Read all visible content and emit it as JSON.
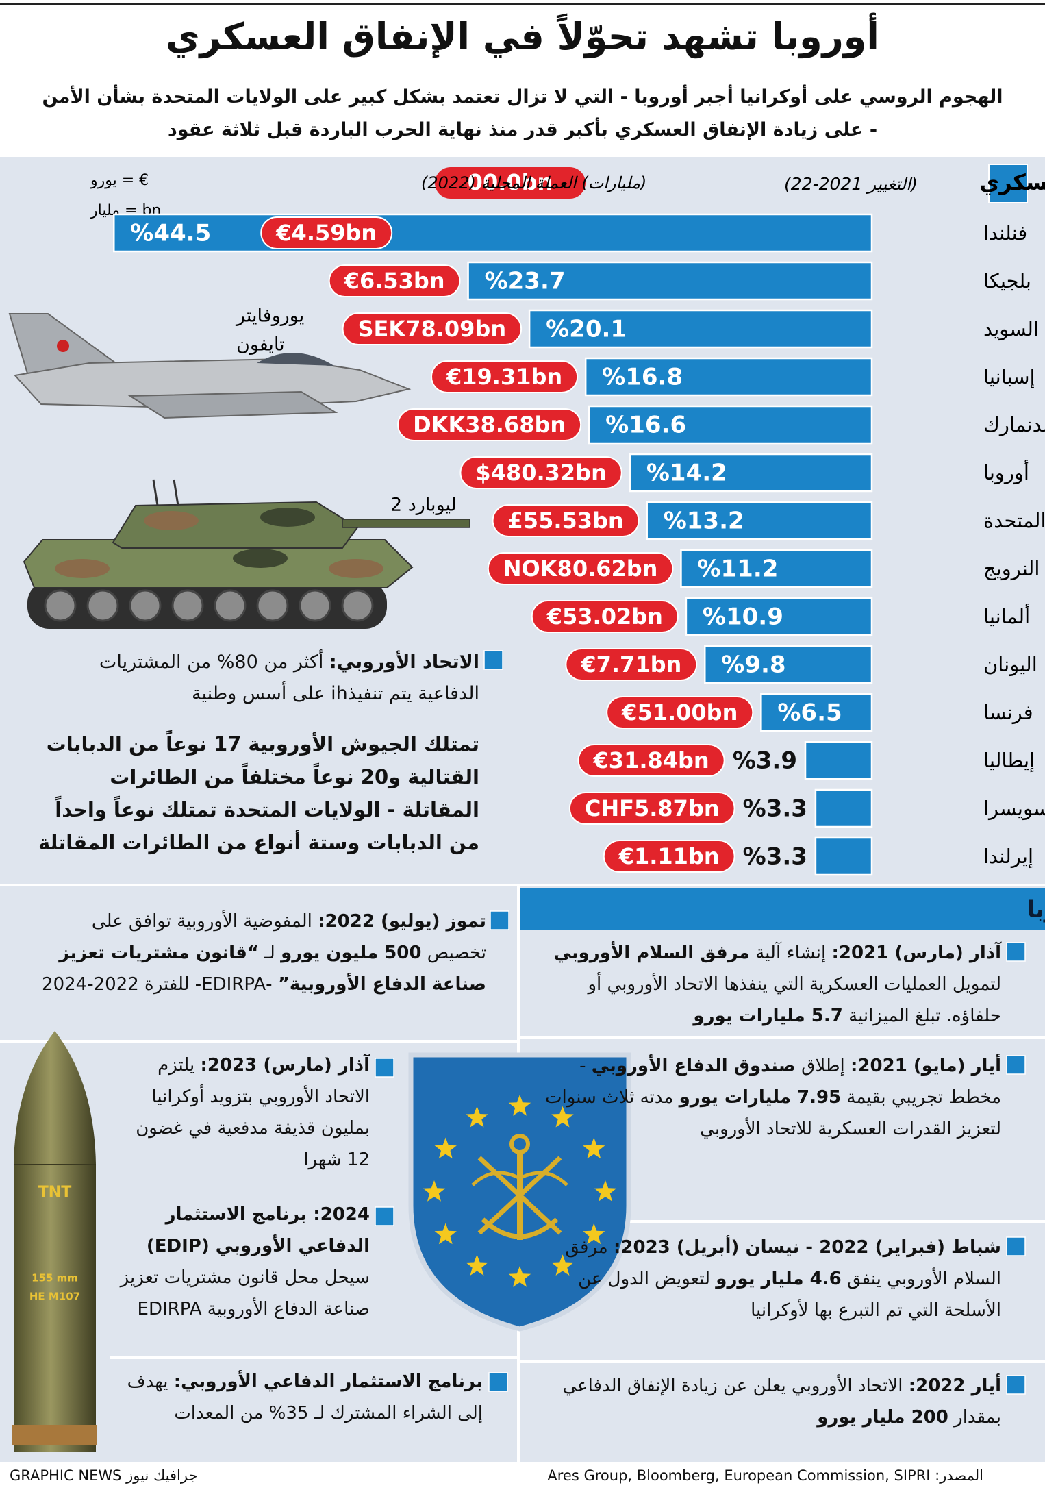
{
  "header": {
    "title": "أوروبا تشهد تحوّلاً في الإنفاق العسكري",
    "subtitle": "الهجوم الروسي على أوكرانيا أجبر أوروبا - التي لا تزال تعتمد بشكل كبير على الولايات المتحدة بشأن الأمن - على زيادة الإنفاق العسكري بأكبر قدر منذ نهاية الحرب الباردة قبل ثلاثة عقود"
  },
  "chart_data": {
    "type": "bar",
    "title": "الإنفاق العسكري",
    "subtitle": "(التغيير 2021-22)",
    "spending_heading": "(مليارات) العملة المحلية (2022)",
    "spending_key": "00.0bn",
    "key_notes": [
      "€ = يورو",
      "bn = مليار"
    ],
    "categories": [
      "فنلندا",
      "بلجيكا",
      "السويد",
      "إسبانيا",
      "الدنمارك",
      "أوروبا",
      "المملكة المتحدة",
      "النرويج",
      "ألمانيا",
      "اليونان",
      "فرنسا",
      "إيطاليا",
      "سويسرا",
      "إيرلندا"
    ],
    "values": [
      44.5,
      23.7,
      20.1,
      16.8,
      16.6,
      14.2,
      13.2,
      11.2,
      10.9,
      9.8,
      6.5,
      3.9,
      3.3,
      3.3
    ],
    "value_labels": [
      "%44.5",
      "%23.7",
      "%20.1",
      "%16.8",
      "%16.6",
      "%14.2",
      "%13.2",
      "%11.2",
      "%10.9",
      "%9.8",
      "%6.5",
      "%3.9",
      "%3.3",
      "%3.3"
    ],
    "spending_labels": [
      "€4.59bn",
      "€6.53bn",
      "SEK78.09bn",
      "€19.31bn",
      "DKK38.68bn",
      "$480.32bn",
      "£55.53bn",
      "NOK80.62bn",
      "€53.02bn",
      "€7.71bn",
      "€51.00bn",
      "€31.84bn",
      "CHF5.87bn",
      "€1.11bn"
    ],
    "color": "#1b84c8",
    "spending_color": "#e2242b"
  },
  "illustrations": {
    "jet": [
      "يوروفايتر",
      "تايفون"
    ],
    "tank": "ليوبارد 2",
    "shell": [
      "TNT",
      "155 mm",
      "HE M107"
    ]
  },
  "notes": [
    {
      "parts": [
        {
          "text": "الاتحاد الأوروبي:",
          "bold": true
        },
        {
          "text": " أكثر من 80% من المشتريات الدفاعية يتم تنفيذih على أسس وطنية",
          "bold": false
        }
      ]
    },
    {
      "parts": [
        {
          "text": "تمتلك الجيوش الأوروبية 17 نوعاً من الدبابات القتالية و20 نوعاً مختلفاً من الطائرات المقاتلة - الولايات المتحدة تمتلك نوعاً واحداً من الدبابات وستة أنواع من الطائرات المقاتلة",
          "bold": true
        }
      ]
    }
  ],
  "budgets": {
    "title": "الميزانيات الأمنية لأوروبا",
    "left_column": [
      {
        "parts": [
          {
            "text": "تموز (يوليو) 2022:",
            "bold": true
          },
          {
            "text": " المفوضية الأوروبية توافق على تخصيص ",
            "bold": false
          },
          {
            "text": "500 مليون يورو",
            "bold": true
          },
          {
            "text": " لـ ",
            "bold": false
          },
          {
            "text": "“قانون مشتريات تعزيز صناعة الدفاع الأوروبية”",
            "bold": true
          },
          {
            "text": " -EDIRPA- للفترة 2022-2024",
            "bold": false
          }
        ]
      },
      {
        "parts": [
          {
            "text": "آذار (مارس) 2023:",
            "bold": true
          },
          {
            "text": " يلتزم الاتحاد الأوروبي بتزويد أوكرانيا بمليون قذيفة مدفعية في غضون 12 شهرا",
            "bold": false
          }
        ]
      },
      {
        "parts": [
          {
            "text": "2024: برنامج الاستثمار الدفاعي الأوروبي (EDIP)",
            "bold": true
          },
          {
            "text": " سيحل محل قانون مشتريات تعزيز صناعة الدفاع الأوروبية EDIRPA",
            "bold": false
          }
        ]
      },
      {
        "parts": [
          {
            "text": "برنامج الاستثمار الدفاعي الأوروبي:",
            "bold": true
          },
          {
            "text": " يهدف إلى الشراء المشترك لـ 35% من المعدات",
            "bold": false
          }
        ]
      }
    ],
    "right_column": [
      {
        "parts": [
          {
            "text": "آذار (مارس) 2021:",
            "bold": true
          },
          {
            "text": " إنشاء آلية ",
            "bold": false
          },
          {
            "text": "مرفق السلام الأوروبي",
            "bold": true
          },
          {
            "text": " لتمويل العمليات العسكرية التي ينفذها الاتحاد الأوروبي أو حلفاؤه. تبلغ الميزانية ",
            "bold": false
          },
          {
            "text": "5.7 مليارات يورو",
            "bold": true
          }
        ]
      },
      {
        "parts": [
          {
            "text": "أيار (مايو) 2021:",
            "bold": true
          },
          {
            "text": " إطلاق ",
            "bold": false
          },
          {
            "text": "صندوق الدفاع الأوروبي",
            "bold": true
          },
          {
            "text": " - مخطط تجريبي بقيمة ",
            "bold": false
          },
          {
            "text": "7.95 مليارات يورو",
            "bold": true
          },
          {
            "text": " مدته ثلاث سنوات لتعزيز القدرات العسكرية للاتحاد الأوروبي",
            "bold": false
          }
        ]
      },
      {
        "parts": [
          {
            "text": "شباط (فبراير) 2022 - نيسان (أبريل) 2023:",
            "bold": true
          },
          {
            "text": " مرفق السلام الأوروبي ينفق ",
            "bold": false
          },
          {
            "text": "4.6 مليار يورو",
            "bold": true
          },
          {
            "text": " لتعويض الدول عن الأسلحة التي تم التبرع بها لأوكرانيا",
            "bold": false
          }
        ]
      },
      {
        "parts": [
          {
            "text": "أيار 2022:",
            "bold": true
          },
          {
            "text": " الاتحاد الأوروبي يعلن عن زيادة الإنفاق الدفاعي بمقدار ",
            "bold": false
          },
          {
            "text": "200 مليار يورو",
            "bold": true
          }
        ]
      }
    ]
  },
  "footer": {
    "source": "المصدر: Ares Group, Bloomberg, European Commission, SIPRI",
    "credit": "GRAPHIC NEWS جرافيك نيوز"
  }
}
